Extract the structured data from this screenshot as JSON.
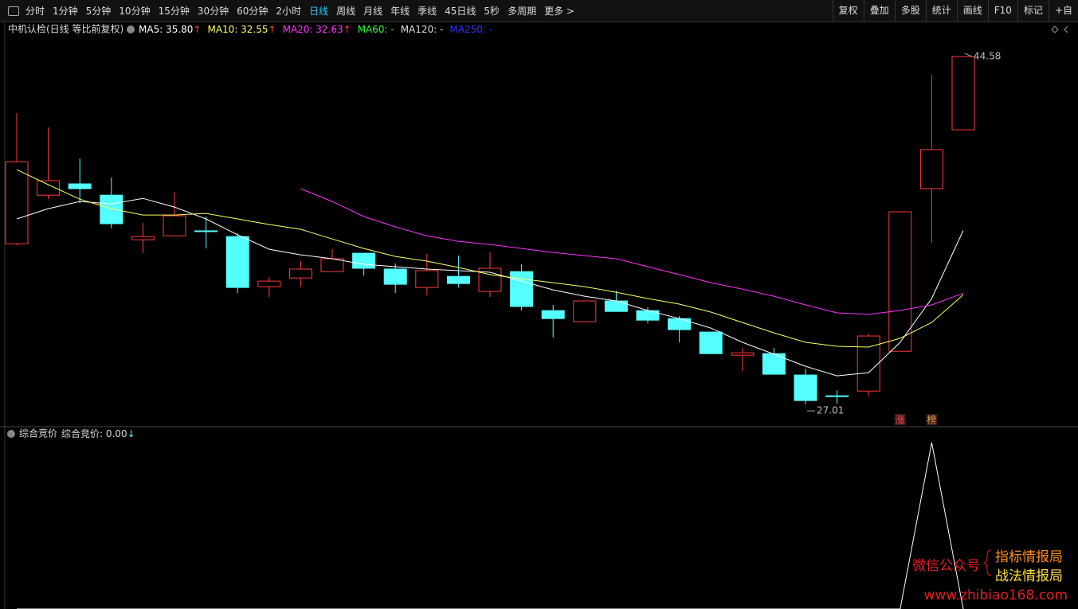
{
  "toolbar": {
    "periods": [
      "分时",
      "1分钟",
      "5分钟",
      "10分钟",
      "15分钟",
      "30分钟",
      "60分钟",
      "2小时",
      "日线",
      "周线",
      "月线",
      "年线",
      "季线",
      "45日线",
      "5秒",
      "多周期",
      "更多 >"
    ],
    "active_index": 8,
    "tools": [
      "复权",
      "叠加",
      "多股",
      "统计",
      "画线",
      "F10",
      "标记",
      "+自"
    ]
  },
  "chart_data": [
    {
      "type": "candlestick",
      "title": "中机认检(日线 等比前复权)",
      "categories": [
        null,
        null,
        null,
        null,
        null,
        null,
        null,
        null,
        null,
        null,
        null,
        null,
        null,
        null,
        null,
        null,
        null,
        null,
        null,
        null,
        null,
        null,
        null,
        null,
        null,
        null,
        null,
        null,
        null,
        null,
        null
      ],
      "open": [
        35.13,
        37.58,
        38.15,
        37.58,
        35.33,
        35.53,
        35.78,
        35.49,
        32.96,
        33.4,
        33.72,
        34.65,
        33.85,
        32.92,
        33.48,
        32.72,
        33.72,
        31.75,
        31.19,
        32.24,
        31.75,
        31.35,
        30.67,
        29.5,
        29.58,
        28.5,
        27.45,
        27.69,
        29.7,
        37.91,
        40.88
      ],
      "high": [
        41.73,
        41.0,
        39.43,
        38.47,
        36.18,
        37.75,
        36.5,
        35.65,
        33.44,
        34.25,
        34.85,
        34.65,
        34.13,
        34.61,
        34.53,
        34.69,
        34.09,
        32.04,
        32.24,
        32.76,
        31.92,
        31.47,
        30.67,
        29.86,
        29.86,
        28.82,
        27.73,
        30.59,
        36.74,
        43.66,
        44.58
      ],
      "low": [
        35.05,
        37.38,
        37.18,
        35.9,
        34.65,
        35.53,
        34.89,
        32.64,
        32.44,
        32.96,
        33.72,
        33.52,
        32.64,
        32.52,
        32.92,
        32.44,
        31.75,
        30.39,
        31.19,
        31.71,
        31.11,
        30.15,
        29.58,
        28.7,
        28.54,
        27.01,
        27.05,
        27.45,
        29.7,
        35.17,
        40.88
      ],
      "close": [
        39.27,
        38.31,
        37.91,
        36.14,
        35.49,
        36.54,
        35.78,
        32.92,
        33.24,
        33.85,
        34.37,
        33.89,
        33.08,
        33.77,
        33.12,
        33.89,
        31.96,
        31.35,
        32.24,
        31.71,
        31.27,
        30.79,
        29.58,
        29.62,
        28.54,
        27.21,
        27.45,
        30.47,
        36.74,
        39.88,
        44.58
      ],
      "up_color": "#ff3b3b",
      "down_color": "#54ffff",
      "ylim": [
        25.93,
        46.31
      ],
      "series": [
        {
          "label": "MA5: 35.80",
          "arrow": "↑",
          "color": "#ffffff",
          "values": [
            36.38,
            36.9,
            37.26,
            37.14,
            37.42,
            36.98,
            36.38,
            35.58,
            34.85,
            34.57,
            34.37,
            34.09,
            33.97,
            33.85,
            33.77,
            33.69,
            33.24,
            32.8,
            32.48,
            32.24,
            31.76,
            31.35,
            30.87,
            30.15,
            29.55,
            28.94,
            28.46,
            28.62,
            30.15,
            32.36,
            35.8
          ]
        },
        {
          "label": "MA10: 32.55",
          "arrow": "↑",
          "color": "#ffff66",
          "values": [
            38.87,
            38.11,
            37.38,
            36.9,
            36.58,
            36.58,
            36.66,
            36.38,
            36.1,
            35.86,
            35.37,
            34.89,
            34.49,
            34.25,
            33.93,
            33.57,
            33.36,
            33.16,
            32.96,
            32.68,
            32.36,
            32.08,
            31.68,
            31.15,
            30.63,
            30.15,
            29.95,
            29.91,
            30.35,
            31.15,
            32.55
          ]
        },
        {
          "label": "MA20: 32.63",
          "arrow": "↑",
          "color": "#ff33ff",
          "values": [
            null,
            null,
            null,
            null,
            null,
            null,
            null,
            null,
            null,
            37.91,
            37.26,
            36.5,
            35.98,
            35.53,
            35.25,
            35.09,
            34.89,
            34.69,
            34.53,
            34.37,
            33.97,
            33.57,
            33.16,
            32.84,
            32.48,
            32.04,
            31.64,
            31.56,
            31.76,
            32.04,
            32.63
          ]
        },
        {
          "label": "MA60: -",
          "color": "#33ff33",
          "values": [
            null,
            null,
            null,
            null,
            null,
            null,
            null,
            null,
            null,
            null,
            null,
            null,
            null,
            null,
            null,
            null,
            null,
            null,
            null,
            null,
            null,
            null,
            null,
            null,
            null,
            null,
            null,
            null,
            null,
            null,
            null
          ]
        },
        {
          "label": "MA120: -",
          "color": "#dddddd",
          "values": [
            null,
            null,
            null,
            null,
            null,
            null,
            null,
            null,
            null,
            null,
            null,
            null,
            null,
            null,
            null,
            null,
            null,
            null,
            null,
            null,
            null,
            null,
            null,
            null,
            null,
            null,
            null,
            null,
            null,
            null,
            null
          ]
        },
        {
          "label": "MA250: -",
          "color": "#3333ff",
          "values": [
            null,
            null,
            null,
            null,
            null,
            null,
            null,
            null,
            null,
            null,
            null,
            null,
            null,
            null,
            null,
            null,
            null,
            null,
            null,
            null,
            null,
            null,
            null,
            null,
            null,
            null,
            null,
            null,
            null,
            null,
            null
          ]
        }
      ],
      "annotations": [
        {
          "value": 44.58,
          "index": 30
        },
        {
          "value": 27.01,
          "index": 25
        }
      ],
      "markers": [
        {
          "label": "涨",
          "index": 28,
          "color": "#ff4d4d"
        },
        {
          "label": "榜",
          "index": 29,
          "color": "#e0a050"
        }
      ]
    },
    {
      "type": "line",
      "title": "综合竞价",
      "label": "综合竞价: 0.00",
      "arrow": "↓",
      "color": "#ffffff",
      "ylim": [
        0,
        1
      ],
      "values": [
        0,
        0,
        0,
        0,
        0,
        0,
        0,
        0,
        0,
        0,
        0,
        0,
        0,
        0,
        0,
        0,
        0,
        0,
        0,
        0,
        0,
        0,
        0,
        0,
        0,
        0,
        0,
        0,
        0,
        1,
        0
      ]
    }
  ],
  "watermark": {
    "left": "微信公众号",
    "right_top": "指标情报局",
    "right_bottom": "战法情报局",
    "url": "www.zhibiao168.com"
  }
}
